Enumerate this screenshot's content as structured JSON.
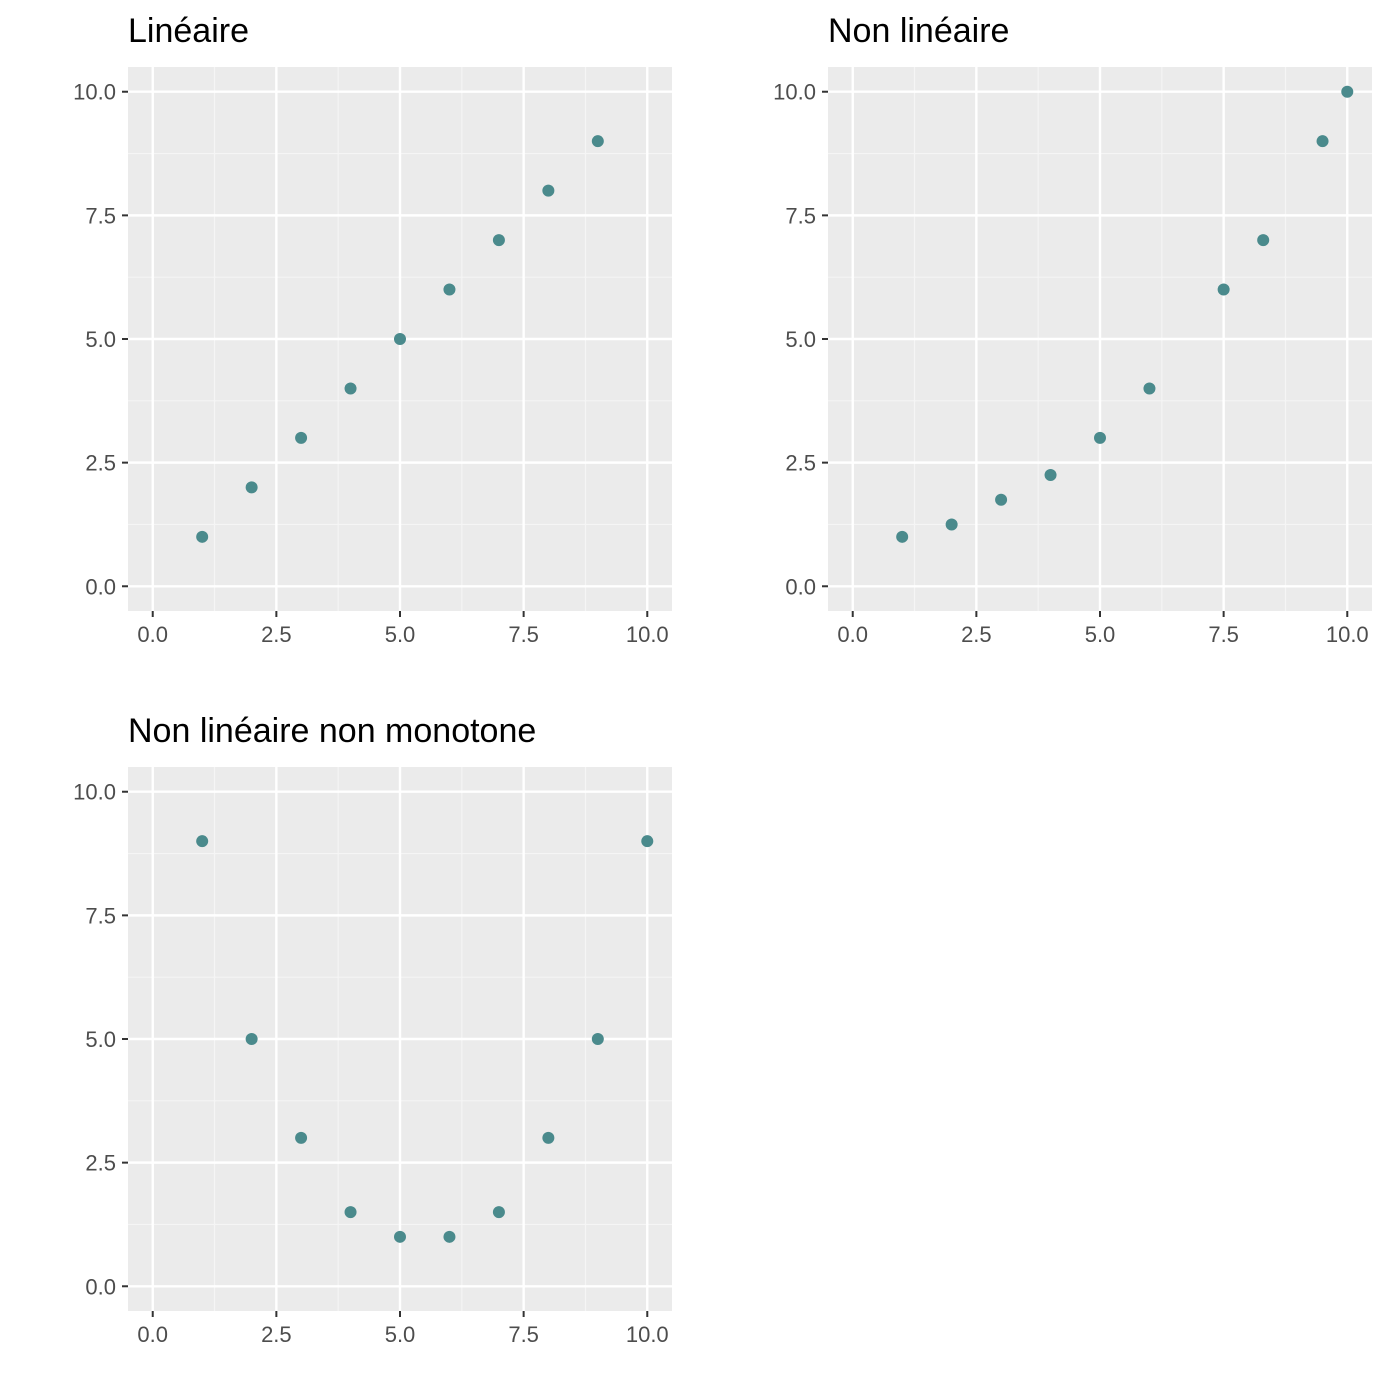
{
  "colors": {
    "panel_background": "#EBEBEB",
    "grid_major": "#FFFFFF",
    "grid_minor": "#F5F5F5",
    "point": "#4A8A8C",
    "tick_text": "#4D4D4D",
    "tick_mark": "#333333",
    "title_text": "#000000"
  },
  "chart_data": [
    {
      "type": "scatter",
      "title": "Linéaire",
      "xlabel": "",
      "ylabel": "",
      "xlim": [
        -0.5,
        10.5
      ],
      "ylim": [
        -0.5,
        10.5
      ],
      "x_ticks": [
        "0.0",
        "2.5",
        "5.0",
        "7.5",
        "10.0"
      ],
      "y_ticks": [
        "0.0",
        "2.5",
        "5.0",
        "7.5",
        "10.0"
      ],
      "grid": true,
      "legend": "none",
      "x": [
        1,
        2,
        3,
        4,
        5,
        6,
        7,
        8,
        9
      ],
      "y": [
        1,
        2,
        3,
        4,
        5,
        6,
        7,
        8,
        9
      ]
    },
    {
      "type": "scatter",
      "title": "Non linéaire",
      "xlabel": "",
      "ylabel": "",
      "xlim": [
        -0.5,
        10.5
      ],
      "ylim": [
        -0.5,
        10.5
      ],
      "x_ticks": [
        "0.0",
        "2.5",
        "5.0",
        "7.5",
        "10.0"
      ],
      "y_ticks": [
        "0.0",
        "2.5",
        "5.0",
        "7.5",
        "10.0"
      ],
      "grid": true,
      "legend": "none",
      "x": [
        1,
        2,
        3,
        4,
        5,
        6,
        7.5,
        8.3,
        9.5,
        10
      ],
      "y": [
        1,
        1.25,
        1.75,
        2.25,
        3,
        4,
        6,
        7,
        9,
        10
      ]
    },
    {
      "type": "scatter",
      "title": "Non linéaire non monotone",
      "xlabel": "",
      "ylabel": "",
      "xlim": [
        -0.5,
        10.5
      ],
      "ylim": [
        -0.5,
        10.5
      ],
      "x_ticks": [
        "0.0",
        "2.5",
        "5.0",
        "7.5",
        "10.0"
      ],
      "y_ticks": [
        "0.0",
        "2.5",
        "5.0",
        "7.5",
        "10.0"
      ],
      "grid": true,
      "legend": "none",
      "x": [
        1,
        2,
        3,
        4,
        5,
        6,
        7,
        8,
        9,
        10
      ],
      "y": [
        9,
        5,
        3,
        1.5,
        1,
        1,
        1.5,
        3,
        5,
        9
      ]
    }
  ]
}
